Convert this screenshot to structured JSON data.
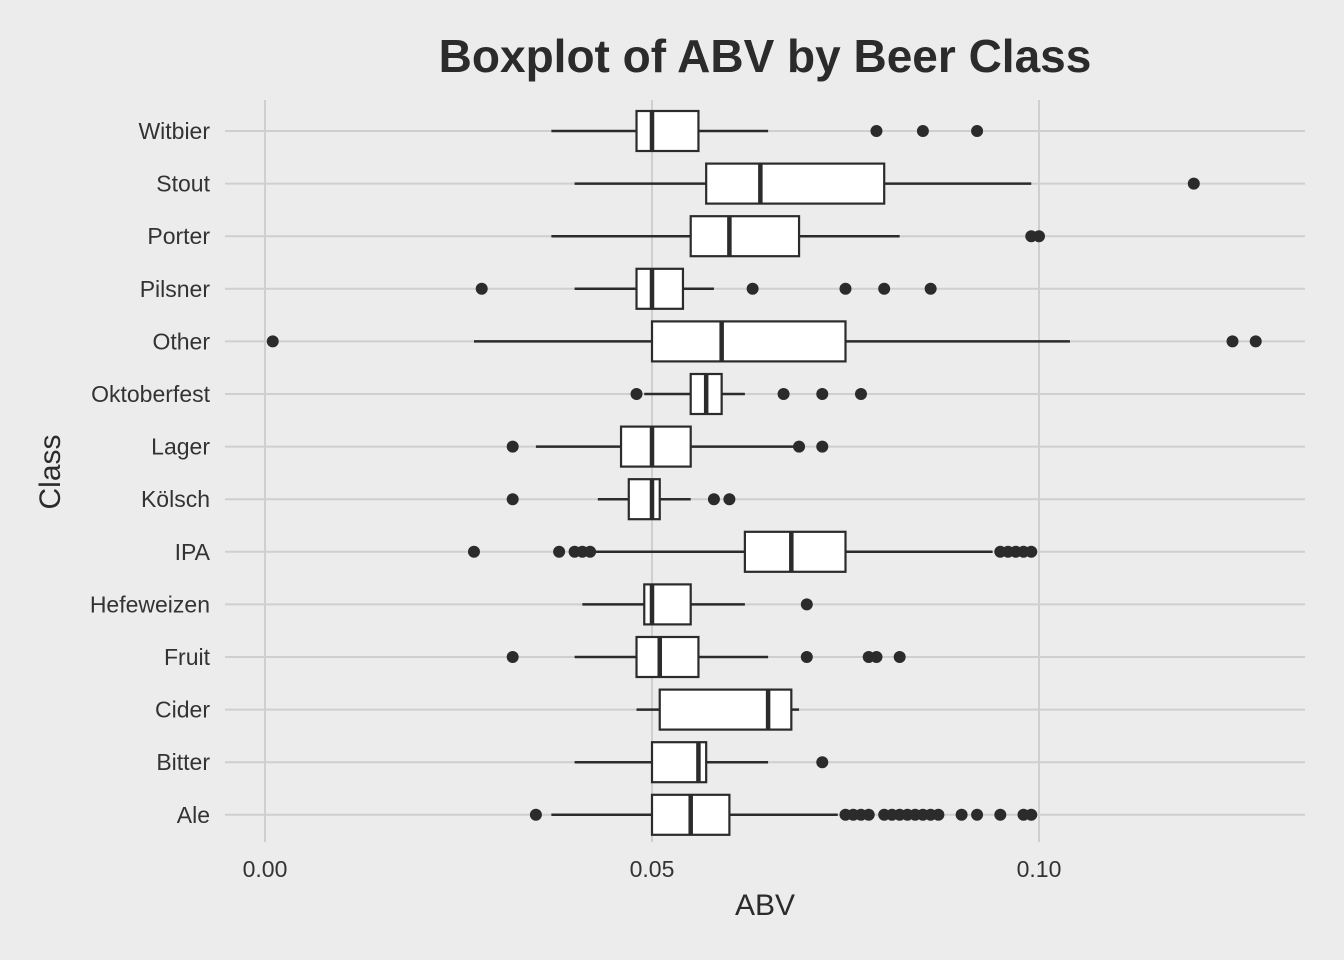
{
  "chart_data": {
    "type": "boxplot",
    "orientation": "horizontal",
    "title": "Boxplot of ABV by Beer Class",
    "xlabel": "ABV",
    "ylabel": "Class",
    "xlim": [
      -0.003,
      0.134
    ],
    "x_ticks": [
      {
        "value": 0.0,
        "label": "0.00"
      },
      {
        "value": 0.05,
        "label": "0.05"
      },
      {
        "value": 0.1,
        "label": "0.10"
      }
    ],
    "grid": true,
    "legend": "none",
    "colors": {
      "background": "#ececec",
      "grid": "#cfcfcf",
      "box_fill": "#ffffff",
      "box_stroke": "#2b2b2b",
      "outlier": "#2b2b2b"
    },
    "categories": [
      "Witbier",
      "Stout",
      "Porter",
      "Pilsner",
      "Other",
      "Oktoberfest",
      "Lager",
      "Kölsch",
      "IPA",
      "Hefeweizen",
      "Fruit",
      "Cider",
      "Bitter",
      "Ale"
    ],
    "boxes": [
      {
        "category": "Witbier",
        "whisker_low": 0.037,
        "q1": 0.048,
        "median": 0.05,
        "q3": 0.056,
        "whisker_high": 0.065,
        "outliers": [
          0.079,
          0.085,
          0.092
        ]
      },
      {
        "category": "Stout",
        "whisker_low": 0.04,
        "q1": 0.057,
        "median": 0.064,
        "q3": 0.08,
        "whisker_high": 0.099,
        "outliers": [
          0.12
        ]
      },
      {
        "category": "Porter",
        "whisker_low": 0.037,
        "q1": 0.055,
        "median": 0.06,
        "q3": 0.069,
        "whisker_high": 0.082,
        "outliers": [
          0.099,
          0.1
        ]
      },
      {
        "category": "Pilsner",
        "whisker_low": 0.04,
        "q1": 0.048,
        "median": 0.05,
        "q3": 0.054,
        "whisker_high": 0.058,
        "outliers": [
          0.028,
          0.063,
          0.075,
          0.08,
          0.086
        ]
      },
      {
        "category": "Other",
        "whisker_low": 0.027,
        "q1": 0.05,
        "median": 0.059,
        "q3": 0.075,
        "whisker_high": 0.104,
        "outliers": [
          0.001,
          0.125,
          0.128
        ]
      },
      {
        "category": "Oktoberfest",
        "whisker_low": 0.049,
        "q1": 0.055,
        "median": 0.057,
        "q3": 0.059,
        "whisker_high": 0.062,
        "outliers": [
          0.048,
          0.067,
          0.072,
          0.077
        ]
      },
      {
        "category": "Lager",
        "whisker_low": 0.035,
        "q1": 0.046,
        "median": 0.05,
        "q3": 0.055,
        "whisker_high": 0.069,
        "outliers": [
          0.032,
          0.069,
          0.072
        ]
      },
      {
        "category": "Kölsch",
        "whisker_low": 0.043,
        "q1": 0.047,
        "median": 0.05,
        "q3": 0.051,
        "whisker_high": 0.055,
        "outliers": [
          0.032,
          0.058,
          0.06
        ]
      },
      {
        "category": "IPA",
        "whisker_low": 0.042,
        "q1": 0.062,
        "median": 0.068,
        "q3": 0.075,
        "whisker_high": 0.094,
        "outliers": [
          0.027,
          0.038,
          0.04,
          0.041,
          0.042,
          0.095,
          0.096,
          0.097,
          0.098,
          0.099
        ]
      },
      {
        "category": "Hefeweizen",
        "whisker_low": 0.041,
        "q1": 0.049,
        "median": 0.05,
        "q3": 0.055,
        "whisker_high": 0.062,
        "outliers": [
          0.07
        ]
      },
      {
        "category": "Fruit",
        "whisker_low": 0.04,
        "q1": 0.048,
        "median": 0.051,
        "q3": 0.056,
        "whisker_high": 0.065,
        "outliers": [
          0.032,
          0.07,
          0.078,
          0.079,
          0.082
        ]
      },
      {
        "category": "Cider",
        "whisker_low": 0.048,
        "q1": 0.051,
        "median": 0.065,
        "q3": 0.068,
        "whisker_high": 0.069,
        "outliers": []
      },
      {
        "category": "Bitter",
        "whisker_low": 0.04,
        "q1": 0.05,
        "median": 0.056,
        "q3": 0.057,
        "whisker_high": 0.065,
        "outliers": [
          0.072
        ]
      },
      {
        "category": "Ale",
        "whisker_low": 0.037,
        "q1": 0.05,
        "median": 0.055,
        "q3": 0.06,
        "whisker_high": 0.074,
        "outliers": [
          0.035,
          0.075,
          0.076,
          0.077,
          0.078,
          0.08,
          0.081,
          0.082,
          0.083,
          0.084,
          0.085,
          0.086,
          0.087,
          0.09,
          0.092,
          0.095,
          0.098,
          0.099
        ]
      }
    ]
  }
}
